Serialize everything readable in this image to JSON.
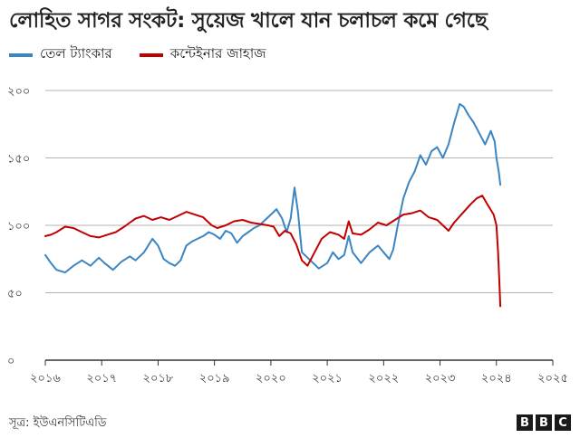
{
  "title": "লোহিত সাগর সংকট: সুয়েজ খালে যান চলাচল কমে গেছে",
  "source": "সূত্র: ইউএনসিটিএডি",
  "logo": [
    "B",
    "B",
    "C"
  ],
  "colors": {
    "tanker": "#3a85c2",
    "container": "#c00000",
    "grid": "#b3b3b3",
    "axis": "#333333"
  },
  "chart_data": {
    "type": "line",
    "ylim": [
      0,
      200
    ],
    "xlim": [
      2016,
      2025
    ],
    "grid": true,
    "legend": "top-left",
    "y_ticks": [
      {
        "value": 0,
        "label": "০"
      },
      {
        "value": 50,
        "label": "৫০"
      },
      {
        "value": 100,
        "label": "১০০"
      },
      {
        "value": 150,
        "label": "১৫০"
      },
      {
        "value": 200,
        "label": "২০০"
      }
    ],
    "x_ticks": [
      {
        "value": 2016,
        "label": "২০১৬"
      },
      {
        "value": 2017,
        "label": "২০১৭"
      },
      {
        "value": 2018,
        "label": "২০১৮"
      },
      {
        "value": 2019,
        "label": "২০১৯"
      },
      {
        "value": 2020,
        "label": "২০২০"
      },
      {
        "value": 2021,
        "label": "২০২১"
      },
      {
        "value": 2022,
        "label": "২০২২"
      },
      {
        "value": 2023,
        "label": "২০২৩"
      },
      {
        "value": 2024,
        "label": "২০২৪"
      },
      {
        "value": 2025,
        "label": "২০২৫"
      }
    ],
    "series": [
      {
        "name": "তেল ট্যাংকার",
        "color": "#3a85c2",
        "points": [
          [
            2016.0,
            78
          ],
          [
            2016.1,
            72
          ],
          [
            2016.2,
            67
          ],
          [
            2016.35,
            65
          ],
          [
            2016.5,
            70
          ],
          [
            2016.65,
            74
          ],
          [
            2016.8,
            70
          ],
          [
            2016.95,
            76
          ],
          [
            2017.05,
            72
          ],
          [
            2017.2,
            67
          ],
          [
            2017.35,
            73
          ],
          [
            2017.5,
            77
          ],
          [
            2017.6,
            74
          ],
          [
            2017.75,
            80
          ],
          [
            2017.9,
            90
          ],
          [
            2018.0,
            85
          ],
          [
            2018.1,
            75
          ],
          [
            2018.2,
            72
          ],
          [
            2018.3,
            70
          ],
          [
            2018.4,
            74
          ],
          [
            2018.5,
            85
          ],
          [
            2018.6,
            88
          ],
          [
            2018.7,
            90
          ],
          [
            2018.8,
            92
          ],
          [
            2018.9,
            95
          ],
          [
            2019.0,
            93
          ],
          [
            2019.1,
            90
          ],
          [
            2019.2,
            96
          ],
          [
            2019.3,
            94
          ],
          [
            2019.4,
            87
          ],
          [
            2019.5,
            92
          ],
          [
            2019.6,
            95
          ],
          [
            2019.7,
            98
          ],
          [
            2019.8,
            100
          ],
          [
            2019.9,
            104
          ],
          [
            2020.0,
            108
          ],
          [
            2020.1,
            112
          ],
          [
            2020.2,
            105
          ],
          [
            2020.28,
            95
          ],
          [
            2020.35,
            105
          ],
          [
            2020.42,
            128
          ],
          [
            2020.48,
            110
          ],
          [
            2020.55,
            80
          ],
          [
            2020.7,
            74
          ],
          [
            2020.85,
            68
          ],
          [
            2021.0,
            72
          ],
          [
            2021.1,
            80
          ],
          [
            2021.2,
            75
          ],
          [
            2021.3,
            78
          ],
          [
            2021.38,
            92
          ],
          [
            2021.45,
            80
          ],
          [
            2021.6,
            72
          ],
          [
            2021.75,
            80
          ],
          [
            2021.9,
            85
          ],
          [
            2022.0,
            80
          ],
          [
            2022.1,
            75
          ],
          [
            2022.17,
            82
          ],
          [
            2022.25,
            100
          ],
          [
            2022.35,
            120
          ],
          [
            2022.45,
            132
          ],
          [
            2022.55,
            140
          ],
          [
            2022.65,
            152
          ],
          [
            2022.75,
            145
          ],
          [
            2022.85,
            155
          ],
          [
            2022.95,
            158
          ],
          [
            2023.05,
            150
          ],
          [
            2023.15,
            160
          ],
          [
            2023.25,
            176
          ],
          [
            2023.35,
            190
          ],
          [
            2023.42,
            188
          ],
          [
            2023.5,
            182
          ],
          [
            2023.6,
            176
          ],
          [
            2023.7,
            168
          ],
          [
            2023.8,
            160
          ],
          [
            2023.9,
            170
          ],
          [
            2023.97,
            162
          ],
          [
            2024.0,
            150
          ],
          [
            2024.04,
            140
          ],
          [
            2024.07,
            130
          ]
        ]
      },
      {
        "name": "কন্টেইনার জাহাজ",
        "color": "#c00000",
        "points": [
          [
            2016.0,
            92
          ],
          [
            2016.1,
            93
          ],
          [
            2016.2,
            95
          ],
          [
            2016.35,
            99
          ],
          [
            2016.5,
            98
          ],
          [
            2016.65,
            95
          ],
          [
            2016.8,
            92
          ],
          [
            2016.95,
            91
          ],
          [
            2017.1,
            93
          ],
          [
            2017.25,
            95
          ],
          [
            2017.4,
            99
          ],
          [
            2017.5,
            102
          ],
          [
            2017.6,
            105
          ],
          [
            2017.75,
            107
          ],
          [
            2017.9,
            104
          ],
          [
            2018.05,
            106
          ],
          [
            2018.2,
            104
          ],
          [
            2018.35,
            107
          ],
          [
            2018.5,
            110
          ],
          [
            2018.65,
            108
          ],
          [
            2018.8,
            106
          ],
          [
            2018.95,
            100
          ],
          [
            2019.05,
            98
          ],
          [
            2019.2,
            100
          ],
          [
            2019.35,
            103
          ],
          [
            2019.5,
            104
          ],
          [
            2019.65,
            102
          ],
          [
            2019.8,
            101
          ],
          [
            2019.95,
            100
          ],
          [
            2020.05,
            99
          ],
          [
            2020.15,
            92
          ],
          [
            2020.25,
            96
          ],
          [
            2020.35,
            94
          ],
          [
            2020.45,
            86
          ],
          [
            2020.55,
            74
          ],
          [
            2020.65,
            70
          ],
          [
            2020.8,
            82
          ],
          [
            2020.9,
            90
          ],
          [
            2021.05,
            95
          ],
          [
            2021.2,
            93
          ],
          [
            2021.3,
            90
          ],
          [
            2021.38,
            103
          ],
          [
            2021.45,
            94
          ],
          [
            2021.6,
            93
          ],
          [
            2021.75,
            97
          ],
          [
            2021.9,
            102
          ],
          [
            2022.05,
            100
          ],
          [
            2022.2,
            104
          ],
          [
            2022.35,
            108
          ],
          [
            2022.5,
            109
          ],
          [
            2022.65,
            111
          ],
          [
            2022.8,
            106
          ],
          [
            2022.95,
            104
          ],
          [
            2023.05,
            100
          ],
          [
            2023.15,
            96
          ],
          [
            2023.25,
            102
          ],
          [
            2023.4,
            109
          ],
          [
            2023.55,
            116
          ],
          [
            2023.65,
            120
          ],
          [
            2023.75,
            122
          ],
          [
            2023.85,
            115
          ],
          [
            2023.95,
            108
          ],
          [
            2024.0,
            100
          ],
          [
            2024.03,
            80
          ],
          [
            2024.05,
            60
          ],
          [
            2024.07,
            40
          ]
        ]
      }
    ]
  }
}
